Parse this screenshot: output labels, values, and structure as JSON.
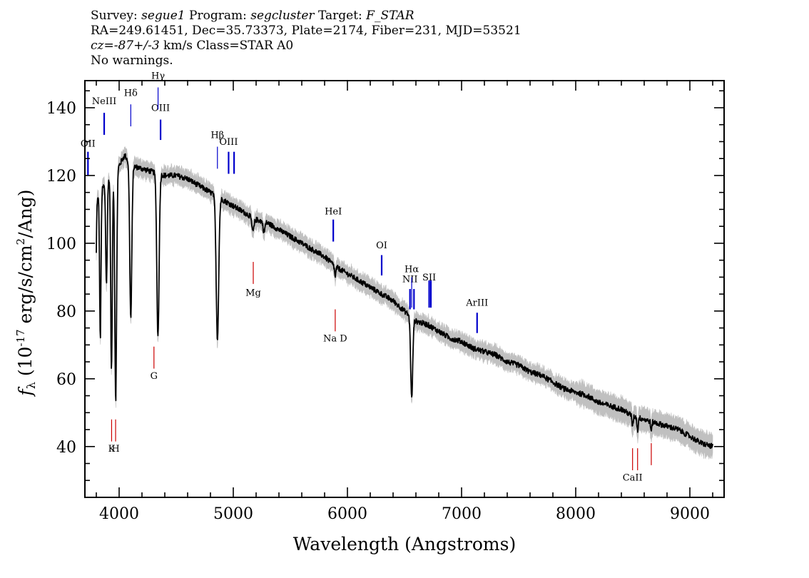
{
  "header": {
    "survey_label": "Survey:",
    "survey": "segue1",
    "program_label": "Program:",
    "program": "segcluster",
    "target_label": "Target:",
    "target": "F_STAR",
    "line2": "RA=249.61451, Dec=35.73373, Plate=2174, Fiber=231, MJD=53521",
    "cz_label": "cz=",
    "cz_value": "-87+/-3",
    "cz_rest": " km/s Class=STAR A0",
    "line4": "No warnings."
  },
  "chart_data": {
    "type": "line",
    "xlabel": "Wavelength (Angstroms)",
    "ylabel_main": "(10",
    "ylabel_sup1": "-17",
    "ylabel_mid": " erg/s/cm",
    "ylabel_sup2": "2",
    "ylabel_end": "/Ang)",
    "ylabel_symbol": "f",
    "ylabel_sub": "λ",
    "xlim": [
      3700,
      9300
    ],
    "ylim": [
      25,
      148
    ],
    "x_ticks": [
      4000,
      5000,
      6000,
      7000,
      8000,
      9000
    ],
    "x_tick_labels": [
      "4000",
      "5000",
      "6000",
      "7000",
      "8000",
      "9000"
    ],
    "y_ticks": [
      40,
      60,
      80,
      100,
      120,
      140
    ],
    "y_tick_labels": [
      "40",
      "60",
      "80",
      "100",
      "120",
      "140"
    ],
    "colors": {
      "spectrum": "#000000",
      "error_band": "#c0c0c0",
      "emission": "#0000cc",
      "absorption": "#cc0000"
    },
    "continuum": [
      [
        3800,
        112
      ],
      [
        3850,
        116
      ],
      [
        3900,
        119
      ],
      [
        3950,
        121
      ],
      [
        4000,
        123
      ],
      [
        4050,
        126
      ],
      [
        4100,
        123
      ],
      [
        4200,
        122
      ],
      [
        4300,
        121
      ],
      [
        4400,
        120
      ],
      [
        4500,
        120
      ],
      [
        4600,
        119
      ],
      [
        4700,
        117
      ],
      [
        4800,
        115
      ],
      [
        4900,
        113
      ],
      [
        5000,
        111
      ],
      [
        5100,
        109
      ],
      [
        5200,
        107
      ],
      [
        5300,
        106
      ],
      [
        5400,
        104
      ],
      [
        5500,
        102
      ],
      [
        5600,
        100
      ],
      [
        5700,
        98
      ],
      [
        5800,
        96
      ],
      [
        5900,
        93
      ],
      [
        6000,
        91
      ],
      [
        6100,
        89
      ],
      [
        6200,
        87
      ],
      [
        6300,
        85
      ],
      [
        6400,
        83
      ],
      [
        6500,
        80
      ],
      [
        6600,
        77
      ],
      [
        6700,
        76
      ],
      [
        6800,
        74
      ],
      [
        6900,
        72
      ],
      [
        7000,
        71
      ],
      [
        7100,
        69
      ],
      [
        7200,
        68
      ],
      [
        7300,
        67
      ],
      [
        7400,
        65
      ],
      [
        7500,
        64
      ],
      [
        7600,
        62
      ],
      [
        7700,
        61
      ],
      [
        7800,
        59
      ],
      [
        7900,
        57
      ],
      [
        8000,
        56
      ],
      [
        8100,
        55
      ],
      [
        8200,
        53
      ],
      [
        8300,
        52
      ],
      [
        8400,
        51
      ],
      [
        8500,
        49
      ],
      [
        8600,
        48
      ],
      [
        8700,
        47
      ],
      [
        8800,
        46
      ],
      [
        8900,
        45
      ],
      [
        9000,
        43
      ],
      [
        9100,
        41
      ],
      [
        9200,
        40
      ]
    ],
    "absorption_features": [
      {
        "center": 3797,
        "depth": 20,
        "width": 4
      },
      {
        "center": 3835,
        "depth": 43,
        "width": 6
      },
      {
        "center": 3889,
        "depth": 30,
        "width": 7
      },
      {
        "center": 3933,
        "depth": 58,
        "width": 7
      },
      {
        "center": 3970,
        "depth": 68,
        "width": 8
      },
      {
        "center": 4102,
        "depth": 45,
        "width": 9
      },
      {
        "center": 4340,
        "depth": 48,
        "width": 10
      },
      {
        "center": 4861,
        "depth": 42,
        "width": 11
      },
      {
        "center": 5172,
        "depth": 4,
        "width": 10
      },
      {
        "center": 5269,
        "depth": 3,
        "width": 8
      },
      {
        "center": 5893,
        "depth": 3,
        "width": 6
      },
      {
        "center": 6563,
        "depth": 24,
        "width": 9
      },
      {
        "center": 8498,
        "depth": 3,
        "width": 5
      },
      {
        "center": 8542,
        "depth": 4,
        "width": 5
      },
      {
        "center": 8662,
        "depth": 3,
        "width": 5
      }
    ],
    "emission_lines": [
      {
        "label": "OII",
        "x": 3727,
        "y_top": 127,
        "y_bottom": 120,
        "label_y": 128.5
      },
      {
        "label": "NeIII",
        "x": 3869,
        "y_top": 138.5,
        "y_bottom": 132,
        "label_y": 141
      },
      {
        "label": "OIII",
        "x": 4363,
        "y_top": 136.5,
        "y_bottom": 130.5,
        "label_y": 139
      },
      {
        "label": "OIII",
        "x": 4959,
        "y_top": 127,
        "y_bottom": 120.5,
        "label_y": 129
      },
      {
        "label": "",
        "x": 5007,
        "y_top": 127,
        "y_bottom": 120.5,
        "label_y": 0
      },
      {
        "label": "HeI",
        "x": 5876,
        "y_top": 107,
        "y_bottom": 100.5,
        "label_y": 108.5
      },
      {
        "label": "OI",
        "x": 6300,
        "y_top": 96.5,
        "y_bottom": 90.5,
        "label_y": 98.5
      },
      {
        "label": "NII",
        "x": 6548,
        "y_top": 86.5,
        "y_bottom": 80.5,
        "label_y": 88.5
      },
      {
        "label": "",
        "x": 6583,
        "y_top": 86.5,
        "y_bottom": 80.5,
        "label_y": 0
      },
      {
        "label": "SII",
        "x": 6716,
        "y_top": 89,
        "y_bottom": 81,
        "label_y": 89
      },
      {
        "label": "",
        "x": 6731,
        "y_top": 89,
        "y_bottom": 81,
        "label_y": 0
      },
      {
        "label": "ArIII",
        "x": 7136,
        "y_top": 79.5,
        "y_bottom": 73.5,
        "label_y": 81.5
      }
    ],
    "balmer_lines": [
      {
        "label": "Hδ",
        "x": 4102,
        "y_top": 141,
        "y_bottom": 134.5,
        "label_y": 143.5
      },
      {
        "label": "Hγ",
        "x": 4341,
        "y_top": 146,
        "y_bottom": 139.5,
        "label_y": 148.5
      },
      {
        "label": "Hβ",
        "x": 4861,
        "y_top": 128.5,
        "y_bottom": 122,
        "label_y": 131
      },
      {
        "label": "Hα",
        "x": 6563,
        "y_top": 90,
        "y_bottom": 81,
        "label_y": 91.5
      }
    ],
    "absorption_lines": [
      {
        "label": "G",
        "x": 4305,
        "y_top": 69.5,
        "y_bottom": 63,
        "label_y": 60
      },
      {
        "label": "Mg",
        "x": 5175,
        "y_top": 94.5,
        "y_bottom": 88,
        "label_y": 84.5
      },
      {
        "label": "Na D",
        "x": 5893,
        "y_top": 80.5,
        "y_bottom": 74,
        "label_y": 71
      },
      {
        "label": "K",
        "x": 3934,
        "y_top": 48,
        "y_bottom": 41.5,
        "label_y": 38.5
      },
      {
        "label": "H",
        "x": 3969,
        "y_top": 48,
        "y_bottom": 41.5,
        "label_y": 38.5
      },
      {
        "label": "CaII",
        "x": 8498,
        "y_top": 39.5,
        "y_bottom": 33,
        "label_y": 30
      },
      {
        "label": "",
        "x": 8542,
        "y_top": 39.5,
        "y_bottom": 33,
        "label_y": 0
      },
      {
        "label": "",
        "x": 8662,
        "y_top": 41,
        "y_bottom": 34.5,
        "label_y": 0
      }
    ]
  }
}
